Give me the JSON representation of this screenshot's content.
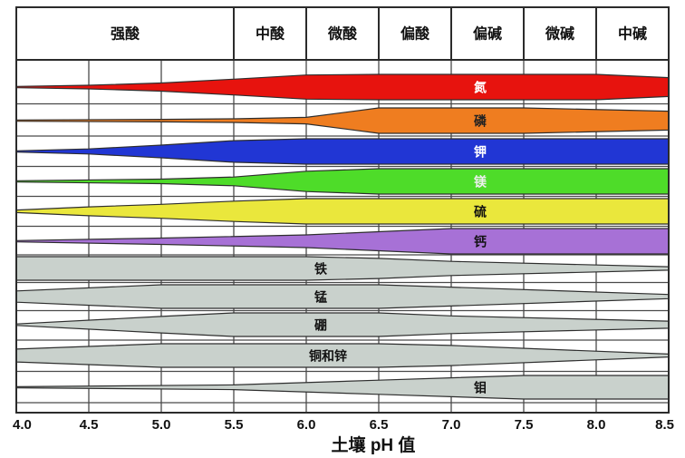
{
  "page": {
    "background": "#ffffff"
  },
  "style": {
    "grid_color": "#4a4a4a",
    "border_color": "#2b2b2b",
    "band_stroke": "#2e2e2e",
    "text_color": "#111111"
  },
  "header": {
    "cells": [
      {
        "label": "强酸",
        "from": 4.0,
        "to": 5.5
      },
      {
        "label": "中酸",
        "from": 5.5,
        "to": 6.0
      },
      {
        "label": "微酸",
        "from": 6.0,
        "to": 6.5
      },
      {
        "label": "偏酸",
        "from": 6.5,
        "to": 7.0
      },
      {
        "label": "偏碱",
        "from": 7.0,
        "to": 7.5
      },
      {
        "label": "微碱",
        "from": 7.5,
        "to": 8.0
      },
      {
        "label": "中碱",
        "from": 8.0,
        "to": 8.5
      }
    ]
  },
  "axis": {
    "min": 4.0,
    "max": 8.5,
    "step": 0.5,
    "tick_labels": [
      "4.0",
      "4.5",
      "5.0",
      "5.5",
      "6.0",
      "6.5",
      "7.0",
      "7.5",
      "8.0",
      "8.5"
    ],
    "title": "土壤 pH 值"
  },
  "chart_data": {
    "type": "area",
    "title": "",
    "xlabel": "土壤 pH 值",
    "ylabel": "",
    "x_range": [
      4.0,
      8.5
    ],
    "x_ticks": [
      4.0,
      4.5,
      5.0,
      5.5,
      6.0,
      6.5,
      7.0,
      7.5,
      8.0,
      8.5
    ],
    "grid": true,
    "ph_zones": [
      "强酸",
      "中酸",
      "微酸",
      "偏酸",
      "偏碱",
      "微碱",
      "中碱"
    ],
    "band_note": "profile = [pH, relative availability 0-1] pairs; band thickness encodes nutrient availability",
    "bands": [
      {
        "name": "氮",
        "fill": "#e7130e",
        "label_color": "#ffffff",
        "label_ph": 7.2,
        "profile": [
          [
            4.0,
            0.05
          ],
          [
            4.5,
            0.14
          ],
          [
            5.0,
            0.32
          ],
          [
            5.5,
            0.62
          ],
          [
            6.0,
            0.95
          ],
          [
            6.5,
            1
          ],
          [
            8.0,
            1
          ],
          [
            8.5,
            0.74
          ]
        ]
      },
      {
        "name": "磷",
        "fill": "#ef7d20",
        "label_color": "#222222",
        "label_ph": 7.2,
        "profile": [
          [
            4.0,
            0.05
          ],
          [
            5.0,
            0.1
          ],
          [
            5.5,
            0.14
          ],
          [
            6.0,
            0.26
          ],
          [
            6.5,
            1
          ],
          [
            7.5,
            1
          ],
          [
            8.5,
            0.74
          ]
        ]
      },
      {
        "name": "钾",
        "fill": "#2136d4",
        "label_color": "#ffffff",
        "label_ph": 7.2,
        "profile": [
          [
            4.0,
            0.05
          ],
          [
            4.5,
            0.2
          ],
          [
            5.0,
            0.5
          ],
          [
            5.5,
            0.85
          ],
          [
            6.0,
            1
          ],
          [
            8.5,
            1
          ]
        ]
      },
      {
        "name": "镁",
        "fill": "#4edc29",
        "label_color": "#efefef",
        "label_ph": 7.2,
        "profile": [
          [
            4.0,
            0.05
          ],
          [
            5.0,
            0.18
          ],
          [
            5.5,
            0.34
          ],
          [
            6.0,
            0.8
          ],
          [
            6.5,
            1
          ],
          [
            8.5,
            1
          ]
        ]
      },
      {
        "name": "硫",
        "fill": "#eae73c",
        "label_color": "#111111",
        "label_ph": 7.2,
        "profile": [
          [
            4.0,
            0.1
          ],
          [
            4.5,
            0.35
          ],
          [
            5.0,
            0.55
          ],
          [
            5.5,
            0.8
          ],
          [
            6.0,
            1
          ],
          [
            8.5,
            1
          ]
        ]
      },
      {
        "name": "钙",
        "fill": "#a771d6",
        "label_color": "#111111",
        "label_ph": 7.2,
        "profile": [
          [
            4.0,
            0.05
          ],
          [
            5.0,
            0.25
          ],
          [
            6.0,
            0.5
          ],
          [
            6.5,
            0.75
          ],
          [
            7.0,
            1
          ],
          [
            8.5,
            1
          ]
        ]
      },
      {
        "name": "铁",
        "fill": "#c9d1cc",
        "label_color": "#111111",
        "label_ph": 6.1,
        "profile": [
          [
            4.0,
            1
          ],
          [
            6.0,
            1
          ],
          [
            6.5,
            0.85
          ],
          [
            7.0,
            0.6
          ],
          [
            8.5,
            0.15
          ]
        ]
      },
      {
        "name": "锰",
        "fill": "#c9d1cc",
        "label_color": "#111111",
        "label_ph": 6.1,
        "profile": [
          [
            4.0,
            0.48
          ],
          [
            5.0,
            1
          ],
          [
            6.5,
            1
          ],
          [
            7.0,
            0.8
          ],
          [
            8.5,
            0.18
          ]
        ]
      },
      {
        "name": "硼",
        "fill": "#c9d1cc",
        "label_color": "#111111",
        "label_ph": 6.1,
        "profile": [
          [
            4.0,
            0.06
          ],
          [
            5.0,
            0.7
          ],
          [
            5.5,
            1
          ],
          [
            6.5,
            1
          ],
          [
            7.0,
            0.75
          ],
          [
            8.5,
            0.3
          ]
        ]
      },
      {
        "name": "铜和锌",
        "fill": "#c9d1cc",
        "label_color": "#111111",
        "label_ph": 6.15,
        "profile": [
          [
            4.0,
            0.55
          ],
          [
            5.0,
            1
          ],
          [
            6.5,
            1
          ],
          [
            7.0,
            0.85
          ],
          [
            8.5,
            0.12
          ]
        ]
      },
      {
        "name": "钼",
        "fill": "#c9d1cc",
        "label_color": "#111111",
        "label_ph": 7.2,
        "profile": [
          [
            4.0,
            0.05
          ],
          [
            5.5,
            0.2
          ],
          [
            6.5,
            0.6
          ],
          [
            7.5,
            1
          ],
          [
            8.5,
            1
          ]
        ]
      }
    ]
  }
}
